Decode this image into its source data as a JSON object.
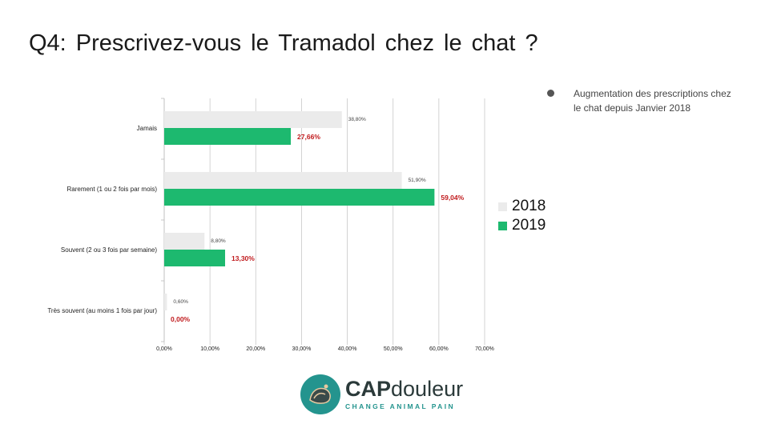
{
  "title": "Q4: Prescrivez-vous le Tramadol chez le chat ?",
  "note": {
    "bullet_icon": "bullet-dot-icon",
    "text": "Augmentation des prescriptions chez le chat depuis Janvier 2018"
  },
  "legend": [
    {
      "label": "2018",
      "color": "#ebebeb"
    },
    {
      "label": "2019",
      "color": "#1db96f"
    }
  ],
  "chart_data": {
    "type": "bar",
    "orientation": "horizontal",
    "title": "Q4: Prescrivez-vous le Tramadol chez le chat ?",
    "categories": [
      "Jamais",
      "Rarement (1 ou 2 fois par mois)",
      "Souvent (2 ou 3 fois par semaine)",
      "Très souvent (au moins 1 fois par jour)"
    ],
    "series": [
      {
        "name": "2018",
        "color": "#ebebeb",
        "values": [
          38.8,
          51.9,
          8.8,
          0.6
        ],
        "labels": [
          "38,80%",
          "51,90%",
          "8,80%",
          "0,60%"
        ]
      },
      {
        "name": "2019",
        "color": "#1db96f",
        "values": [
          27.66,
          59.04,
          13.3,
          0.0
        ],
        "labels": [
          "27,66%",
          "59,04%",
          "13,30%",
          "0,00%"
        ]
      }
    ],
    "xlim": [
      0,
      70
    ],
    "xticks": [
      "0,00%",
      "10,00%",
      "20,00%",
      "30,00%",
      "40,00%",
      "50,00%",
      "60,00%",
      "70,00%"
    ],
    "grid": true,
    "legend_position": "right"
  },
  "logo": {
    "icon": "cap-douleur-logo-icon",
    "brand_bold": "CAP",
    "brand_rest": "douleur",
    "tagline": "CHANGE ANIMAL PAIN",
    "circle_color": "#24948e"
  }
}
